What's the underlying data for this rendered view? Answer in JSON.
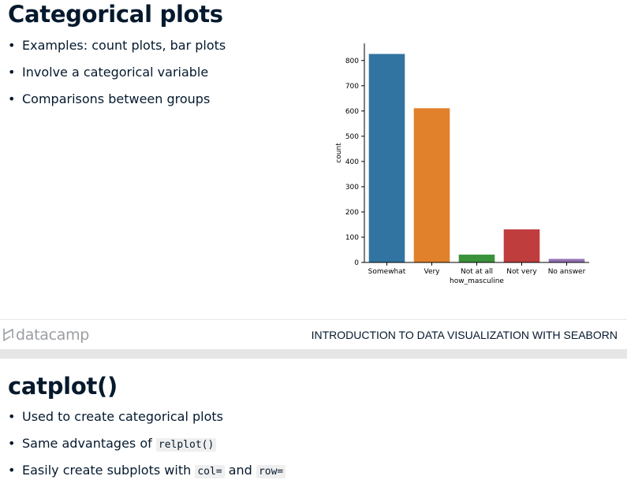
{
  "slide1": {
    "title": "Categorical plots",
    "bullets": [
      "Examples: count plots, bar plots",
      "Involve a categorical variable",
      "Comparisons between groups"
    ]
  },
  "footer": {
    "logo_text": "datacamp",
    "course_title": "INTRODUCTION TO DATA VISUALIZATION WITH SEABORN"
  },
  "slide2": {
    "title": "catplot()",
    "bullet1": "Used to create categorical plots",
    "bullet2_text": "Same advantages of",
    "bullet2_code": "relplot()",
    "bullet3_text": "Easily create subplots with",
    "bullet3_code1": "col=",
    "bullet3_and": "and",
    "bullet3_code2": "row="
  },
  "chart_data": {
    "type": "bar",
    "categories": [
      "Somewhat",
      "Very",
      "Not at all",
      "Not very",
      "No answer"
    ],
    "values": [
      826,
      611,
      31,
      131,
      14
    ],
    "colors": [
      "#3274a1",
      "#e1812c",
      "#3a923a",
      "#c03d3e",
      "#9372b2"
    ],
    "xlabel": "how_masculine",
    "ylabel": "count",
    "yticks": [
      0,
      100,
      200,
      300,
      400,
      500,
      600,
      700,
      800
    ],
    "ylim": [
      0,
      868
    ],
    "grid": false
  }
}
